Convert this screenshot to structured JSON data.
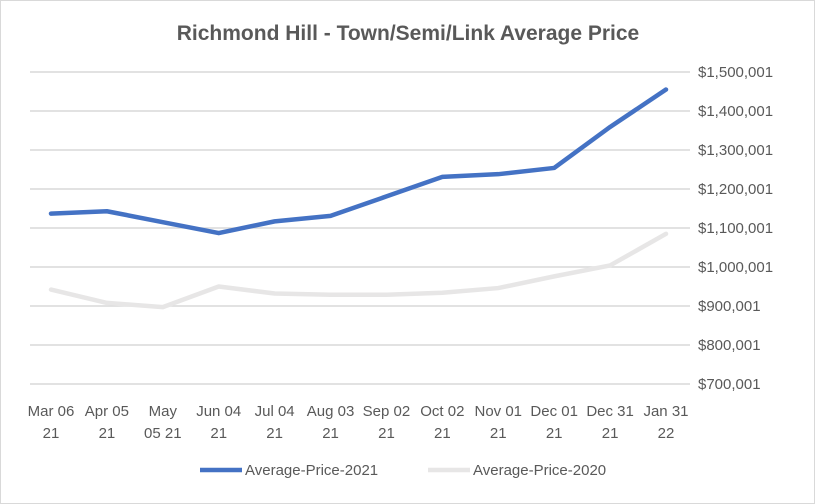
{
  "chart_data": {
    "type": "line",
    "title": "Richmond Hill - Town/Semi/Link Average Price",
    "xlabel": "",
    "ylabel": "",
    "categories": [
      [
        "Mar 06",
        "21"
      ],
      [
        "Apr 05",
        "21"
      ],
      [
        "May",
        "05 21"
      ],
      [
        "Jun 04",
        "21"
      ],
      [
        "Jul 04",
        "21"
      ],
      [
        "Aug 03",
        "21"
      ],
      [
        "Sep 02",
        "21"
      ],
      [
        "Oct 02",
        "21"
      ],
      [
        "Nov 01",
        "21"
      ],
      [
        "Dec 01",
        "21"
      ],
      [
        "Dec 31",
        "21"
      ],
      [
        "Jan 31",
        "22"
      ]
    ],
    "y_ticks": [
      "$700,001",
      "$800,001",
      "$900,001",
      "$1,000,001",
      "$1,100,001",
      "$1,200,001",
      "$1,300,001",
      "$1,400,001",
      "$1,500,001"
    ],
    "ylim": [
      700001,
      1500001
    ],
    "grid": true,
    "legend_position": "bottom",
    "series": [
      {
        "name": "Average-Price-2021",
        "color": "#4472c4",
        "values": [
          1137000,
          1143000,
          1115000,
          1087000,
          1117000,
          1131000,
          1181000,
          1231000,
          1238000,
          1254000,
          1359000,
          1455000
        ]
      },
      {
        "name": "Average-Price-2020",
        "color": "#e7e6e6",
        "values": [
          942000,
          908000,
          897000,
          950000,
          932000,
          929000,
          929000,
          934000,
          946000,
          976000,
          1004000,
          1085000
        ]
      }
    ]
  }
}
